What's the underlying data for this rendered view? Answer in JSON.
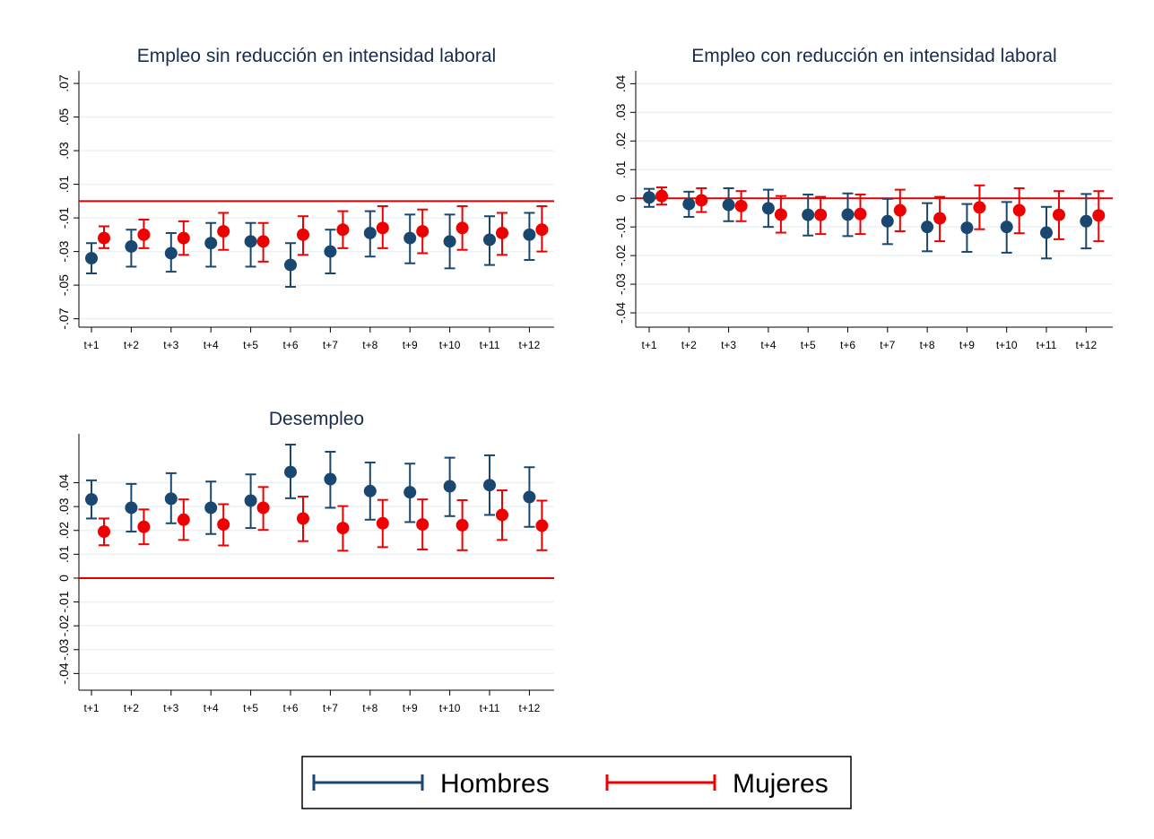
{
  "colors": {
    "hombres": "#1a476f",
    "mujeres": "#ee0000",
    "zero_line": "#dd0000",
    "grid": "#eaf2f3"
  },
  "legend": [
    {
      "label": "Hombres",
      "color": "#1a476f"
    },
    {
      "label": "Mujeres",
      "color": "#ee0000"
    }
  ],
  "chart_data": [
    {
      "type": "scatter",
      "title": "Empleo sin reducción en intensidad laboral",
      "categories": [
        "t+1",
        "t+2",
        "t+3",
        "t+4",
        "t+5",
        "t+6",
        "t+7",
        "t+8",
        "t+9",
        "t+10",
        "t+11",
        "t+12"
      ],
      "ylim": [
        -0.075,
        0.0775
      ],
      "yticks": [
        -0.07,
        -0.05,
        -0.03,
        -0.01,
        0.01,
        0.03,
        0.05,
        0.07
      ],
      "ytick_labels": [
        "-.07",
        "-.05",
        "-.03",
        "-.01",
        ".01",
        ".03",
        ".05",
        ".07"
      ],
      "reference_line": 0,
      "grid": true,
      "series": [
        {
          "name": "Hombres",
          "values": [
            -0.034,
            -0.027,
            -0.031,
            -0.025,
            -0.024,
            -0.038,
            -0.03,
            -0.019,
            -0.022,
            -0.024,
            -0.023,
            -0.02
          ],
          "lower": [
            -0.043,
            -0.039,
            -0.042,
            -0.039,
            -0.039,
            -0.051,
            -0.043,
            -0.033,
            -0.037,
            -0.04,
            -0.038,
            -0.035
          ],
          "upper": [
            -0.025,
            -0.017,
            -0.019,
            -0.013,
            -0.013,
            -0.025,
            -0.017,
            -0.006,
            -0.008,
            -0.008,
            -0.009,
            -0.007
          ]
        },
        {
          "name": "Mujeres",
          "values": [
            -0.022,
            -0.02,
            -0.022,
            -0.018,
            -0.024,
            -0.02,
            -0.017,
            -0.016,
            -0.018,
            -0.016,
            -0.019,
            -0.017
          ],
          "lower": [
            -0.028,
            -0.028,
            -0.032,
            -0.029,
            -0.036,
            -0.032,
            -0.028,
            -0.028,
            -0.031,
            -0.029,
            -0.032,
            -0.03
          ],
          "upper": [
            -0.015,
            -0.011,
            -0.012,
            -0.007,
            -0.013,
            -0.009,
            -0.006,
            -0.003,
            -0.005,
            -0.003,
            -0.007,
            -0.003
          ]
        }
      ]
    },
    {
      "type": "scatter",
      "title": "Empleo con reducción en intensidad laboral",
      "categories": [
        "t+1",
        "t+2",
        "t+3",
        "t+4",
        "t+5",
        "t+6",
        "t+7",
        "t+8",
        "t+9",
        "t+10",
        "t+11",
        "t+12"
      ],
      "ylim": [
        -0.045,
        0.0445
      ],
      "yticks": [
        -0.04,
        -0.03,
        -0.02,
        -0.01,
        0,
        0.01,
        0.02,
        0.03,
        0.04
      ],
      "ytick_labels": [
        "-.04",
        "-.03",
        "-.02",
        "-.01",
        "0",
        ".01",
        ".02",
        ".03",
        ".04"
      ],
      "reference_line": 0,
      "grid": true,
      "series": [
        {
          "name": "Hombres",
          "values": [
            0.0003,
            -0.002,
            -0.0023,
            -0.0035,
            -0.0058,
            -0.0057,
            -0.008,
            -0.01,
            -0.0103,
            -0.01,
            -0.012,
            -0.008
          ],
          "lower": [
            -0.003,
            -0.0065,
            -0.008,
            -0.01,
            -0.013,
            -0.0132,
            -0.016,
            -0.0185,
            -0.0187,
            -0.019,
            -0.021,
            -0.0175
          ],
          "upper": [
            0.0033,
            0.0023,
            0.0035,
            0.003,
            0.0013,
            0.0017,
            -0.0002,
            -0.0017,
            -0.002,
            -0.0013,
            -0.003,
            0.0015
          ]
        },
        {
          "name": "Mujeres",
          "values": [
            0.0008,
            -0.0007,
            -0.0027,
            -0.0057,
            -0.0058,
            -0.0055,
            -0.0042,
            -0.007,
            -0.0032,
            -0.0042,
            -0.0058,
            -0.006
          ],
          "lower": [
            -0.0022,
            -0.0048,
            -0.008,
            -0.012,
            -0.0125,
            -0.0125,
            -0.0115,
            -0.015,
            -0.0108,
            -0.0122,
            -0.0143,
            -0.015
          ],
          "upper": [
            0.0038,
            0.0035,
            0.0025,
            0.0008,
            0.0005,
            0.0013,
            0.003,
            0.0005,
            0.0045,
            0.0035,
            0.0025,
            0.0025
          ]
        }
      ]
    },
    {
      "type": "scatter",
      "title": "Desempleo",
      "categories": [
        "t+1",
        "t+2",
        "t+3",
        "t+4",
        "t+5",
        "t+6",
        "t+7",
        "t+8",
        "t+9",
        "t+10",
        "t+11",
        "t+12"
      ],
      "ylim": [
        -0.047,
        0.0605
      ],
      "yticks": [
        -0.04,
        -0.03,
        -0.02,
        -0.01,
        0,
        0.01,
        0.02,
        0.03,
        0.04
      ],
      "ytick_labels": [
        "-.04",
        "-.03",
        "-.02",
        "-.01",
        "0",
        ".01",
        ".02",
        ".03",
        ".04"
      ],
      "reference_line": 0,
      "grid": true,
      "series": [
        {
          "name": "Hombres",
          "values": [
            0.033,
            0.0295,
            0.0333,
            0.0295,
            0.0325,
            0.0445,
            0.0415,
            0.0365,
            0.036,
            0.0385,
            0.039,
            0.034
          ],
          "lower": [
            0.025,
            0.0195,
            0.023,
            0.0185,
            0.021,
            0.0335,
            0.0295,
            0.0245,
            0.0235,
            0.026,
            0.0265,
            0.0215
          ],
          "upper": [
            0.041,
            0.0395,
            0.044,
            0.0405,
            0.0435,
            0.056,
            0.053,
            0.0485,
            0.048,
            0.0505,
            0.0515,
            0.0465
          ]
        },
        {
          "name": "Mujeres",
          "values": [
            0.0195,
            0.0215,
            0.0245,
            0.0225,
            0.0295,
            0.025,
            0.021,
            0.023,
            0.0225,
            0.0222,
            0.0265,
            0.022
          ],
          "lower": [
            0.0138,
            0.0142,
            0.016,
            0.0137,
            0.0202,
            0.0155,
            0.0115,
            0.013,
            0.012,
            0.0117,
            0.016,
            0.0117
          ],
          "upper": [
            0.025,
            0.0288,
            0.033,
            0.031,
            0.0382,
            0.0342,
            0.0302,
            0.0328,
            0.033,
            0.0327,
            0.0368,
            0.0325
          ]
        }
      ]
    }
  ]
}
